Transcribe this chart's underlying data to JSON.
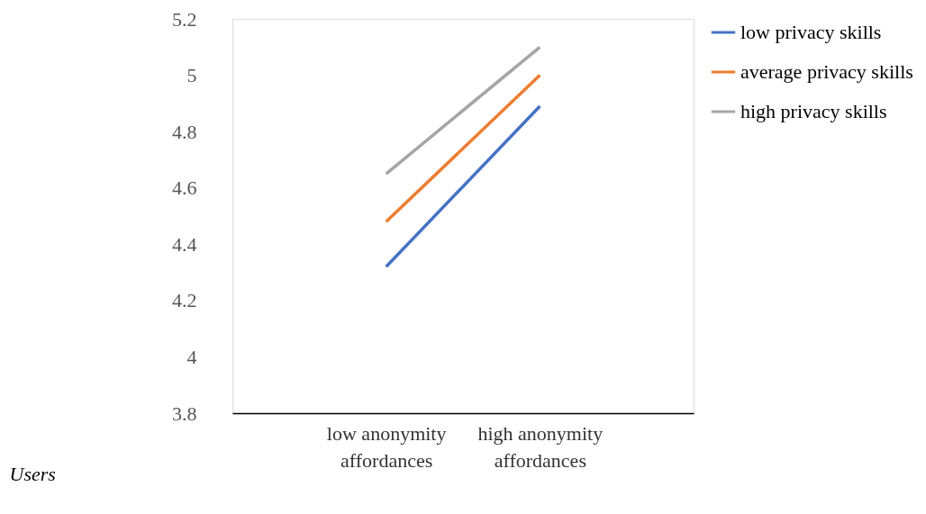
{
  "chart_data": {
    "type": "line",
    "categories": [
      "low anonymity affordances",
      "high anonymity affordances"
    ],
    "series": [
      {
        "name": "low privacy skills",
        "color": "#4472c4",
        "values": [
          4.32,
          4.89
        ]
      },
      {
        "name": "average privacy skills",
        "color": "#ed7d31",
        "values": [
          4.48,
          5.0
        ]
      },
      {
        "name": "high privacy skills",
        "color": "#a5a5a5",
        "values": [
          4.65,
          5.1
        ]
      }
    ],
    "ylim": [
      3.8,
      5.2
    ],
    "yticks": [
      3.8,
      4,
      4.2,
      4.4,
      4.6,
      4.8,
      5,
      5.2
    ],
    "grid": false,
    "legend": "right",
    "marker": "none",
    "line_style": "solid",
    "annotations": [
      "Users"
    ]
  }
}
